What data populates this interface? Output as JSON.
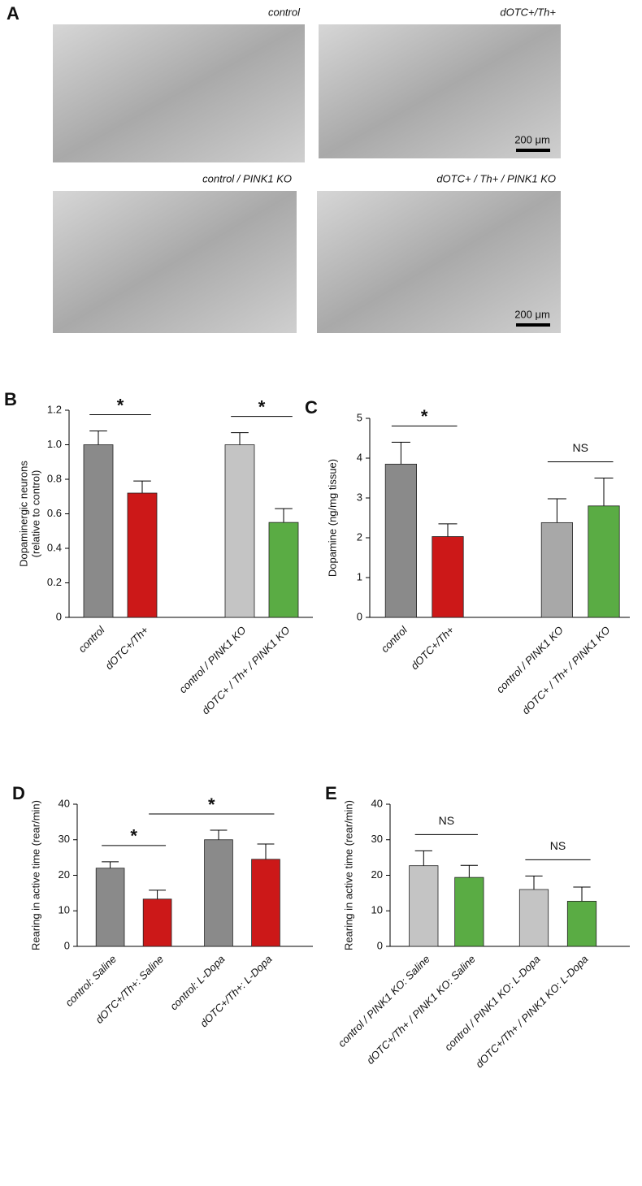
{
  "panel_a": {
    "panel": "A",
    "scale_bar": "200 μm",
    "images": [
      {
        "caption": "control",
        "color": "#111111"
      },
      {
        "caption": "dOTC+/Th+",
        "color": "#cc1818"
      },
      {
        "caption": "control / PINK1 KO",
        "color": "#111111"
      },
      {
        "caption": "dOTC+ / Th+ / PINK1 KO",
        "color": "#3a8a2a"
      }
    ]
  },
  "chart_data": [
    {
      "type": "bar",
      "panel": "B",
      "ylabel": [
        "Dopaminergic neurons",
        "(relative to control)"
      ],
      "categories": [
        "control",
        "dOTC+/Th+",
        "control / PINK1 KO",
        "dOTC+ / Th+ / PINK1 KO"
      ],
      "values": [
        1.0,
        0.72,
        1.0,
        0.55
      ],
      "errors": [
        0.08,
        0.07,
        0.07,
        0.08
      ],
      "colors": [
        "#8a8a8a",
        "#cc1818",
        "#c4c4c4",
        "#5aac44"
      ],
      "label_colors": [
        "#111111",
        "#cc1818",
        "#111111",
        "#3a8a2a"
      ],
      "ylim": [
        0,
        1.2
      ],
      "yticks": [
        0,
        0.2,
        0.4,
        0.6,
        0.8,
        {
          "value": 1,
          "label": "1.0"
        },
        1.2
      ],
      "annotations": [
        {
          "label": "*",
          "from": 0,
          "to": 1
        },
        {
          "label": "*",
          "from": 2,
          "to": 3
        }
      ]
    },
    {
      "type": "bar",
      "panel": "C",
      "ylabel": [
        "Dopamine (ng/mg tissue)"
      ],
      "categories": [
        "control",
        "dOTC+/Th+",
        "control / PINK1 KO",
        "dOTC+ / Th+ / PINK1 KO"
      ],
      "values": [
        3.85,
        2.03,
        2.38,
        2.8
      ],
      "errors": [
        0.55,
        0.32,
        0.6,
        0.7
      ],
      "colors": [
        "#8a8a8a",
        "#cc1818",
        "#a8a8a8",
        "#5aac44"
      ],
      "label_colors": [
        "#111111",
        "#cc1818",
        "#111111",
        "#3a8a2a"
      ],
      "ylim": [
        0,
        5
      ],
      "yticks": [
        0,
        1,
        2,
        3,
        4,
        5
      ],
      "annotations": [
        {
          "label": "*",
          "from": 0,
          "to": 1
        },
        {
          "label": "NS",
          "from": 2,
          "to": 3
        }
      ]
    },
    {
      "type": "bar",
      "panel": "D",
      "ylabel": [
        "Rearing in active time (rear/min)"
      ],
      "categories": [
        "control: Saline",
        "dOTC+/Th+: Saline",
        "control: L-Dopa",
        "dOTC+/Th+: L-Dopa"
      ],
      "values": [
        22,
        13.3,
        30,
        24.5
      ],
      "errors": [
        1.8,
        2.5,
        2.7,
        4.3
      ],
      "colors": [
        "#8a8a8a",
        "#cc1818",
        "#8a8a8a",
        "#cc1818"
      ],
      "label_colors": [
        "#111111",
        "#cc1818",
        "#111111",
        "#cc1818"
      ],
      "ylim": [
        0,
        40
      ],
      "yticks": [
        0,
        10,
        20,
        30,
        40
      ],
      "annotations": [
        {
          "label": "*",
          "from": 0,
          "to": 1
        },
        {
          "label": "*",
          "from": 1,
          "to": 3
        }
      ]
    },
    {
      "type": "bar",
      "panel": "E",
      "ylabel": [
        "Rearing in active time (rear/min)"
      ],
      "categories": [
        "control / PINK1 KO: Saline",
        "dOTC+/Th+ / PINK1 KO: Saline",
        "control / PINK1 KO: L-Dopa",
        "dOTC+/Th+ / PINK1 KO: L-Dopa"
      ],
      "values": [
        22.7,
        19.4,
        16,
        12.7
      ],
      "errors": [
        4.2,
        3.4,
        3.8,
        4
      ],
      "colors": [
        "#c4c4c4",
        "#5aac44",
        "#c4c4c4",
        "#5aac44"
      ],
      "label_colors": [
        "#111111",
        "#3a8a2a",
        "#111111",
        "#3a8a2a"
      ],
      "ylim": [
        0,
        40
      ],
      "yticks": [
        0,
        10,
        20,
        30,
        40
      ],
      "annotations": [
        {
          "label": "NS",
          "from": 0,
          "to": 1
        },
        {
          "label": "NS",
          "from": 2,
          "to": 3
        }
      ]
    }
  ]
}
